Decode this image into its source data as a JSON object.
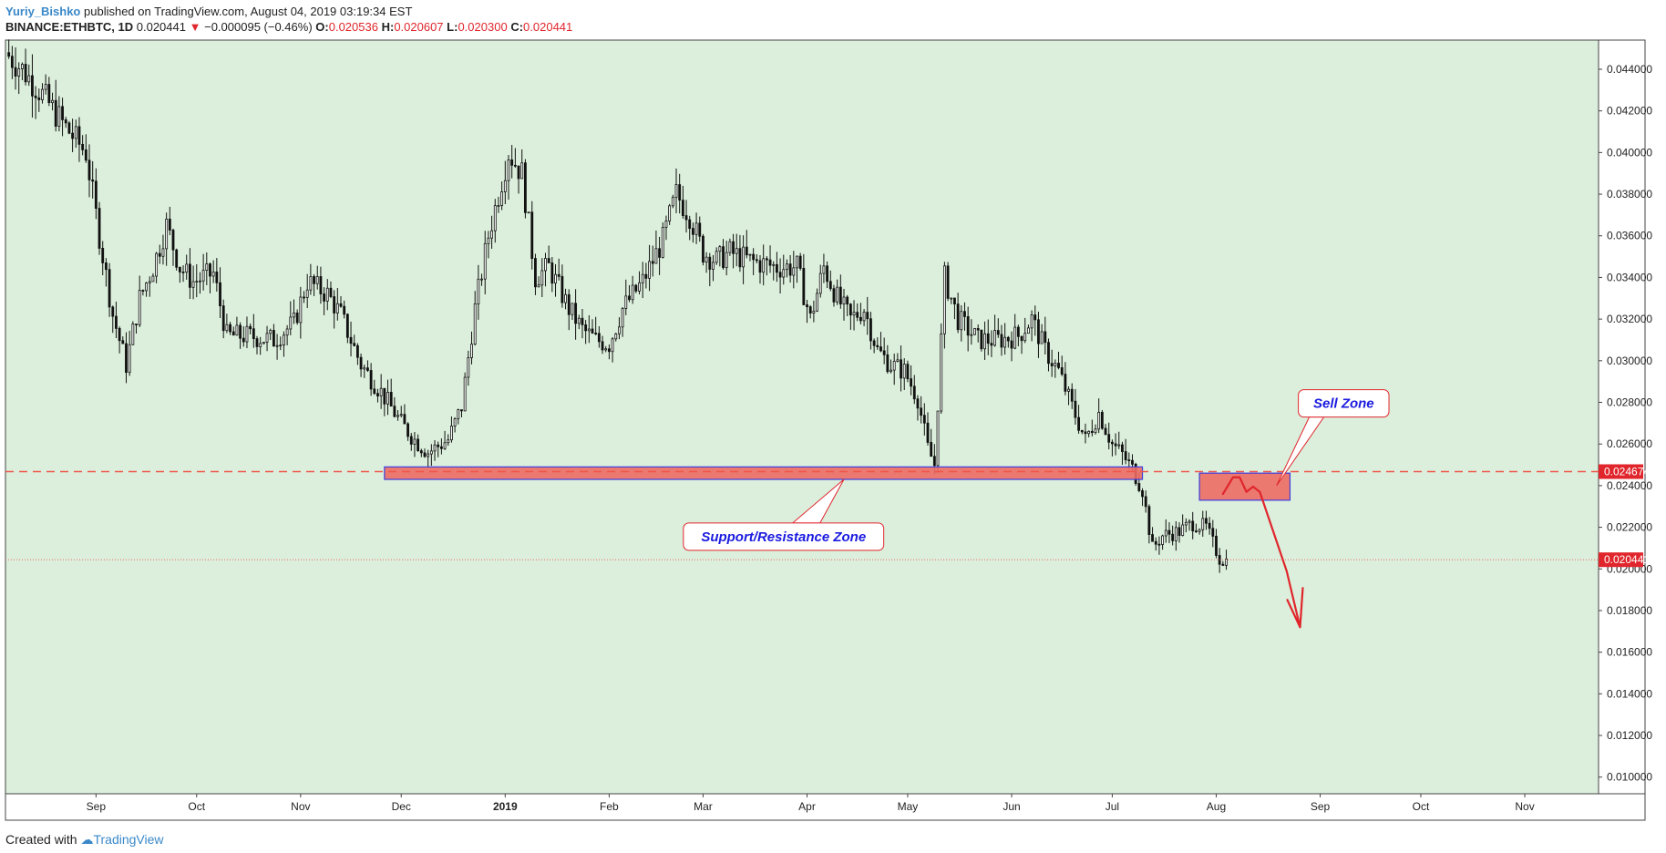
{
  "header": {
    "author": "Yuriy_Bishko",
    "published_text": "published on TradingView.com, August 04, 2019 03:19:34 EST",
    "symbol": "BINANCE:ETHBTC, 1D",
    "last": "0.020441",
    "change": "−0.000095 (−0.46%)",
    "o_label": "O:",
    "o_value": "0.020536",
    "h_label": "H:",
    "h_value": "0.020607",
    "l_label": "L:",
    "l_value": "0.020300",
    "c_label": "C:",
    "c_value": "0.020441"
  },
  "footer": {
    "created_with": "Created with",
    "brand": "TradingView"
  },
  "chart_data": {
    "type": "candlestick",
    "title": "",
    "xlabel": "",
    "ylabel": "",
    "ylim": [
      0.0092,
      0.0454
    ],
    "grid": false,
    "y_ticks": [
      "0.010000",
      "0.012000",
      "0.014000",
      "0.016000",
      "0.018000",
      "0.020000",
      "0.022000",
      "0.024000",
      "0.026000",
      "0.028000",
      "0.030000",
      "0.032000",
      "0.034000",
      "0.036000",
      "0.038000",
      "0.040000",
      "0.042000",
      "0.044000"
    ],
    "x_ticks": [
      {
        "label": "Sep",
        "day": 27
      },
      {
        "label": "Oct",
        "day": 57
      },
      {
        "label": "Nov",
        "day": 88
      },
      {
        "label": "Dec",
        "day": 118
      },
      {
        "label": "2019",
        "day": 149
      },
      {
        "label": "Feb",
        "day": 180
      },
      {
        "label": "Mar",
        "day": 208
      },
      {
        "label": "Apr",
        "day": 239
      },
      {
        "label": "May",
        "day": 269
      },
      {
        "label": "Jun",
        "day": 300
      },
      {
        "label": "Jul",
        "day": 330
      },
      {
        "label": "Aug",
        "day": 361
      },
      {
        "label": "Sep",
        "day": 392
      },
      {
        "label": "Oct",
        "day": 422
      },
      {
        "label": "Nov",
        "day": 453
      }
    ],
    "x_range_days": [
      0,
      475
    ],
    "price_path": [
      [
        0,
        0.0448
      ],
      [
        5,
        0.044
      ],
      [
        10,
        0.043
      ],
      [
        18,
        0.0412
      ],
      [
        24,
        0.04
      ],
      [
        28,
        0.036
      ],
      [
        32,
        0.0322
      ],
      [
        36,
        0.0298
      ],
      [
        40,
        0.033
      ],
      [
        44,
        0.0345
      ],
      [
        48,
        0.0365
      ],
      [
        52,
        0.0345
      ],
      [
        56,
        0.0338
      ],
      [
        62,
        0.0342
      ],
      [
        66,
        0.0312
      ],
      [
        72,
        0.0312
      ],
      [
        80,
        0.031
      ],
      [
        86,
        0.0318
      ],
      [
        90,
        0.0338
      ],
      [
        96,
        0.0332
      ],
      [
        100,
        0.0322
      ],
      [
        106,
        0.0298
      ],
      [
        112,
        0.0285
      ],
      [
        118,
        0.027
      ],
      [
        122,
        0.0262
      ],
      [
        126,
        0.0256
      ],
      [
        132,
        0.0262
      ],
      [
        136,
        0.0278
      ],
      [
        140,
        0.0325
      ],
      [
        144,
        0.036
      ],
      [
        150,
        0.04
      ],
      [
        154,
        0.039
      ],
      [
        158,
        0.034
      ],
      [
        162,
        0.0345
      ],
      [
        168,
        0.0325
      ],
      [
        172,
        0.0315
      ],
      [
        176,
        0.031
      ],
      [
        180,
        0.0308
      ],
      [
        184,
        0.0325
      ],
      [
        190,
        0.0338
      ],
      [
        196,
        0.0358
      ],
      [
        200,
        0.038
      ],
      [
        204,
        0.037
      ],
      [
        208,
        0.0352
      ],
      [
        212,
        0.0348
      ],
      [
        216,
        0.0352
      ],
      [
        222,
        0.0348
      ],
      [
        230,
        0.0345
      ],
      [
        236,
        0.0345
      ],
      [
        240,
        0.032
      ],
      [
        244,
        0.0345
      ],
      [
        248,
        0.033
      ],
      [
        252,
        0.032
      ],
      [
        256,
        0.0325
      ],
      [
        260,
        0.0305
      ],
      [
        264,
        0.0298
      ],
      [
        268,
        0.0295
      ],
      [
        272,
        0.0282
      ],
      [
        275,
        0.0258
      ],
      [
        277,
        0.025
      ],
      [
        280,
        0.034
      ],
      [
        284,
        0.032
      ],
      [
        290,
        0.031
      ],
      [
        296,
        0.031
      ],
      [
        302,
        0.0312
      ],
      [
        306,
        0.032
      ],
      [
        310,
        0.0305
      ],
      [
        314,
        0.0295
      ],
      [
        318,
        0.0278
      ],
      [
        322,
        0.0262
      ],
      [
        326,
        0.0275
      ],
      [
        330,
        0.026
      ],
      [
        333,
        0.0255
      ],
      [
        336,
        0.0248
      ],
      [
        339,
        0.0238
      ],
      [
        342,
        0.021
      ],
      [
        345,
        0.0216
      ],
      [
        350,
        0.0218
      ],
      [
        354,
        0.0222
      ],
      [
        358,
        0.022
      ],
      [
        362,
        0.0205
      ],
      [
        364,
        0.0204
      ]
    ],
    "reference_lines": [
      {
        "value": 0.024674,
        "style": "dashed",
        "color": "#f0554a",
        "label": "0.024674"
      },
      {
        "value": 0.020441,
        "style": "dotted",
        "color": "#f0554a",
        "label": "0.020441"
      }
    ],
    "zones": [
      {
        "x0": 113,
        "x1": 339,
        "y0": 0.0243,
        "y1": 0.0249
      },
      {
        "x0": 356,
        "x1": 383,
        "y0": 0.0233,
        "y1": 0.0246
      }
    ],
    "annotations": [
      {
        "text": "Support/Resistance Zone",
        "x": 232,
        "y": 0.02155,
        "target_x": 250,
        "target_y": 0.0243
      },
      {
        "text": "Sell Zone",
        "x": 399,
        "y": 0.02795,
        "target_x": 379,
        "target_y": 0.024
      }
    ],
    "forecast_path": [
      [
        363,
        0.0236
      ],
      [
        366,
        0.0244
      ],
      [
        368,
        0.0244
      ],
      [
        370,
        0.0237
      ],
      [
        372,
        0.02395
      ],
      [
        374,
        0.0237
      ],
      [
        378,
        0.0218
      ],
      [
        382,
        0.0199
      ],
      [
        386,
        0.0172
      ]
    ]
  },
  "colors": {
    "plot_bg": "#dcefdc",
    "candle": "#111111",
    "zone_fill": "#ec6b64",
    "zone_border": "#3d3fe0",
    "label_bg": "#e0262c",
    "callout_text": "#1b1be0",
    "forecast": "#e0262c"
  }
}
